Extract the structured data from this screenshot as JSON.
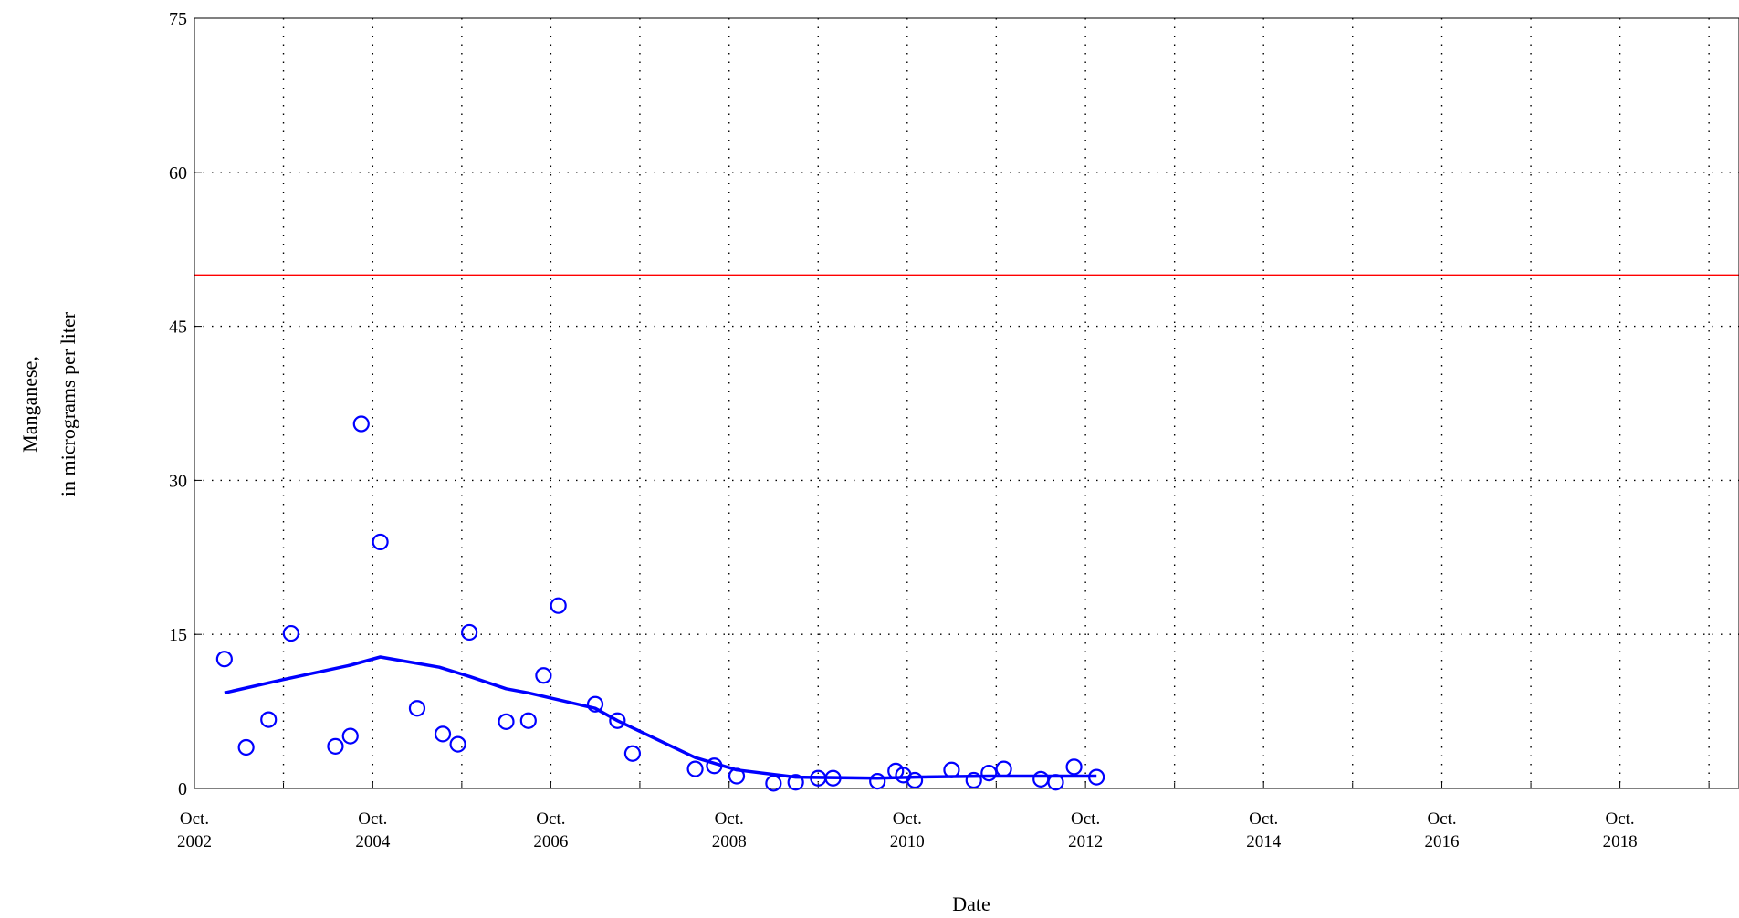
{
  "chart_data": {
    "type": "scatter",
    "xlabel": "Date",
    "ylabel_lines": [
      "Manganese,",
      "in micrograms per liter"
    ],
    "xlim": [
      "2002-10-01",
      "2020-02-01"
    ],
    "ylim": [
      0,
      75
    ],
    "grid": true,
    "y_ticks": [
      0,
      15,
      30,
      45,
      60,
      75
    ],
    "x_ticks": [
      {
        "date": "2002-10-01",
        "line1": "Oct.",
        "line2": "2002"
      },
      {
        "date": "2004-10-01",
        "line1": "Oct.",
        "line2": "2004"
      },
      {
        "date": "2006-10-01",
        "line1": "Oct.",
        "line2": "2006"
      },
      {
        "date": "2008-10-01",
        "line1": "Oct.",
        "line2": "2008"
      },
      {
        "date": "2010-10-01",
        "line1": "Oct.",
        "line2": "2010"
      },
      {
        "date": "2012-10-01",
        "line1": "Oct.",
        "line2": "2012"
      },
      {
        "date": "2014-10-01",
        "line1": "Oct.",
        "line2": "2014"
      },
      {
        "date": "2016-10-01",
        "line1": "Oct.",
        "line2": "2016"
      },
      {
        "date": "2018-10-01",
        "line1": "Oct.",
        "line2": "2018"
      }
    ],
    "x_minor_grid": [
      "2003-10-01",
      "2005-10-01",
      "2007-10-01",
      "2009-10-01",
      "2011-10-01",
      "2013-10-01",
      "2015-10-01",
      "2017-10-01",
      "2019-10-01"
    ],
    "reference_line": {
      "y": 50,
      "color": "#ff0000"
    },
    "series": [
      {
        "kind": "points",
        "marker": "open-circle",
        "color": "#0000ff",
        "points": [
          {
            "x": "2003-02-01",
            "y": 12.6
          },
          {
            "x": "2003-05-01",
            "y": 4.0
          },
          {
            "x": "2003-08-01",
            "y": 6.7
          },
          {
            "x": "2003-11-01",
            "y": 15.1
          },
          {
            "x": "2004-05-01",
            "y": 4.1
          },
          {
            "x": "2004-07-01",
            "y": 5.1
          },
          {
            "x": "2004-08-15",
            "y": 35.5
          },
          {
            "x": "2004-11-01",
            "y": 24.0
          },
          {
            "x": "2005-04-01",
            "y": 7.8
          },
          {
            "x": "2005-07-15",
            "y": 5.3
          },
          {
            "x": "2005-09-15",
            "y": 4.3
          },
          {
            "x": "2005-11-01",
            "y": 15.2
          },
          {
            "x": "2006-04-01",
            "y": 6.5
          },
          {
            "x": "2006-07-01",
            "y": 6.6
          },
          {
            "x": "2006-09-01",
            "y": 11.0
          },
          {
            "x": "2006-11-01",
            "y": 17.8
          },
          {
            "x": "2007-04-01",
            "y": 8.2
          },
          {
            "x": "2007-07-01",
            "y": 6.6
          },
          {
            "x": "2007-09-01",
            "y": 3.4
          },
          {
            "x": "2008-05-15",
            "y": 1.9
          },
          {
            "x": "2008-08-01",
            "y": 2.2
          },
          {
            "x": "2008-11-01",
            "y": 1.2
          },
          {
            "x": "2009-04-01",
            "y": 0.5
          },
          {
            "x": "2009-07-01",
            "y": 0.6
          },
          {
            "x": "2009-10-01",
            "y": 1.0
          },
          {
            "x": "2009-12-01",
            "y": 1.0
          },
          {
            "x": "2010-06-01",
            "y": 0.7
          },
          {
            "x": "2010-08-15",
            "y": 1.7
          },
          {
            "x": "2010-09-15",
            "y": 1.3
          },
          {
            "x": "2010-11-01",
            "y": 0.8
          },
          {
            "x": "2011-04-01",
            "y": 1.8
          },
          {
            "x": "2011-07-01",
            "y": 0.8
          },
          {
            "x": "2011-09-01",
            "y": 1.5
          },
          {
            "x": "2011-11-01",
            "y": 1.9
          },
          {
            "x": "2012-04-01",
            "y": 0.9
          },
          {
            "x": "2012-06-01",
            "y": 0.6
          },
          {
            "x": "2012-08-15",
            "y": 2.1
          },
          {
            "x": "2012-11-15",
            "y": 1.1
          }
        ]
      },
      {
        "kind": "trend",
        "color": "#0000ff",
        "points": [
          {
            "x": "2003-02-01",
            "y": 9.3
          },
          {
            "x": "2003-10-01",
            "y": 10.6
          },
          {
            "x": "2004-07-01",
            "y": 12.0
          },
          {
            "x": "2004-11-01",
            "y": 12.8
          },
          {
            "x": "2005-07-01",
            "y": 11.8
          },
          {
            "x": "2005-11-01",
            "y": 10.9
          },
          {
            "x": "2006-04-01",
            "y": 9.7
          },
          {
            "x": "2006-07-01",
            "y": 9.3
          },
          {
            "x": "2007-04-01",
            "y": 7.8
          },
          {
            "x": "2007-07-01",
            "y": 6.6
          },
          {
            "x": "2008-05-15",
            "y": 3.0
          },
          {
            "x": "2008-11-01",
            "y": 1.8
          },
          {
            "x": "2009-07-01",
            "y": 1.1
          },
          {
            "x": "2010-06-01",
            "y": 1.0
          },
          {
            "x": "2010-11-01",
            "y": 1.1
          },
          {
            "x": "2011-09-01",
            "y": 1.2
          },
          {
            "x": "2012-06-01",
            "y": 1.2
          },
          {
            "x": "2012-11-15",
            "y": 1.2
          }
        ]
      }
    ]
  }
}
